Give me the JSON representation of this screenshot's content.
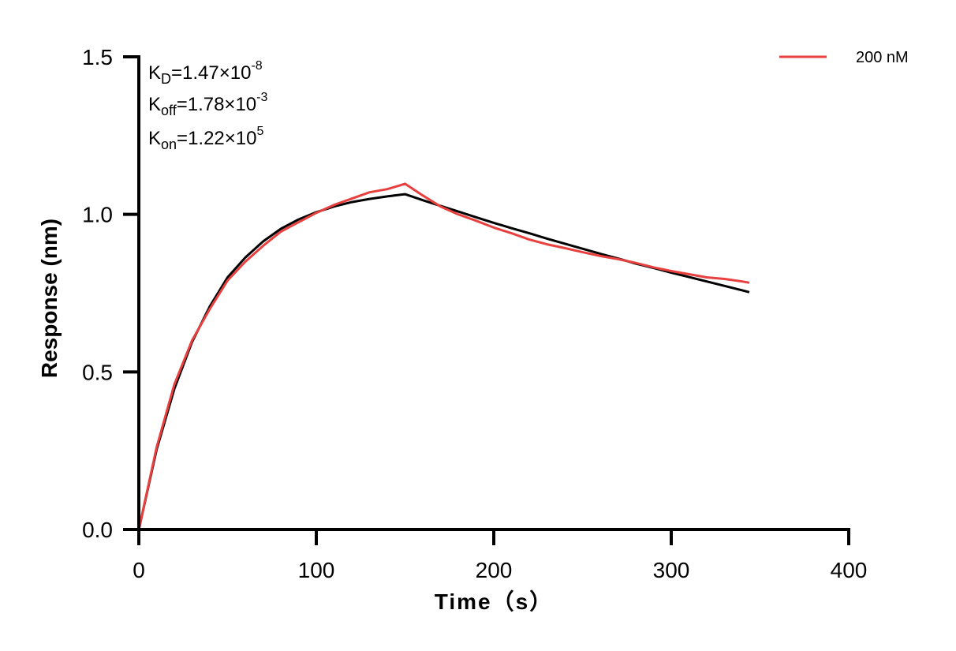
{
  "chart_data": {
    "type": "line",
    "title": "",
    "xlabel": "Time（s）",
    "ylabel": "Response (nm)",
    "xlim": [
      0,
      400
    ],
    "ylim": [
      0,
      1.5
    ],
    "xticks": [
      "0",
      "100",
      "200",
      "300",
      "400"
    ],
    "yticks": [
      "0.0",
      "0.5",
      "1.0",
      "1.5"
    ],
    "grid": false,
    "legend_position": "top-right",
    "annotations": {
      "kd": {
        "label": "K",
        "sub": "D",
        "value": "=1.47×10",
        "exp": "-8"
      },
      "koff": {
        "label": "K",
        "sub": "off",
        "value": "=1.78×10",
        "exp": "-3"
      },
      "kon": {
        "label": "K",
        "sub": "on",
        "value": "=1.22×10",
        "exp": "5"
      }
    },
    "x": [
      0,
      10,
      20,
      30,
      40,
      50,
      60,
      70,
      80,
      90,
      100,
      110,
      120,
      130,
      140,
      150,
      160,
      170,
      180,
      190,
      200,
      210,
      220,
      230,
      240,
      250,
      260,
      270,
      280,
      290,
      300,
      310,
      320,
      330,
      340,
      344
    ],
    "series": [
      {
        "name": "200 nM",
        "color": "#e8403f",
        "values": [
          0,
          0.26,
          0.46,
          0.6,
          0.7,
          0.79,
          0.85,
          0.9,
          0.945,
          0.975,
          1.005,
          1.03,
          1.05,
          1.07,
          1.08,
          1.097,
          1.06,
          1.025,
          1.0,
          0.98,
          0.958,
          0.94,
          0.92,
          0.905,
          0.893,
          0.88,
          0.868,
          0.858,
          0.846,
          0.832,
          0.82,
          0.81,
          0.8,
          0.795,
          0.787,
          0.783
        ]
      },
      {
        "color": "#000000",
        "values": [
          0,
          0.253,
          0.446,
          0.595,
          0.708,
          0.8,
          0.863,
          0.914,
          0.954,
          0.984,
          1.007,
          1.025,
          1.039,
          1.049,
          1.057,
          1.064,
          1.045,
          1.027,
          1.009,
          0.991,
          0.973,
          0.956,
          0.94,
          0.923,
          0.907,
          0.891,
          0.875,
          0.86,
          0.844,
          0.83,
          0.815,
          0.801,
          0.787,
          0.773,
          0.759,
          0.753
        ]
      }
    ]
  }
}
